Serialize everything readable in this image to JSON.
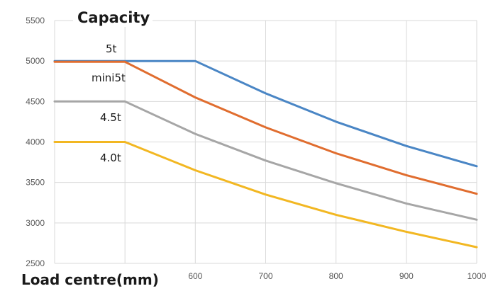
{
  "chart_data": {
    "type": "line",
    "title": "Capacity",
    "xlabel": "Load centre(mm)",
    "ylabel": "",
    "x": [
      400,
      500,
      600,
      700,
      800,
      900,
      1000
    ],
    "x_tick_labels": [
      "500",
      "600",
      "700",
      "800",
      "900",
      "1000"
    ],
    "y_tick_labels": [
      "2500",
      "3000",
      "3500",
      "4000",
      "4500",
      "5000",
      "5500"
    ],
    "xlim": [
      400,
      1000
    ],
    "ylim": [
      2500,
      5500
    ],
    "grid": true,
    "legend": "none",
    "series": [
      {
        "name": "5t",
        "color": "#4a86c5",
        "values": [
          5000,
          5000,
          5000,
          4600,
          4250,
          3950,
          3700
        ]
      },
      {
        "name": "mini5t",
        "color": "#e06d2f",
        "values": [
          4990,
          4990,
          4550,
          4180,
          3860,
          3590,
          3360
        ]
      },
      {
        "name": "4.5t",
        "color": "#a6a6a6",
        "values": [
          4500,
          4500,
          4100,
          3770,
          3490,
          3240,
          3040
        ]
      },
      {
        "name": "4.0t",
        "color": "#f2b722",
        "values": [
          4000,
          4000,
          3650,
          3350,
          3100,
          2890,
          2700
        ]
      }
    ]
  }
}
